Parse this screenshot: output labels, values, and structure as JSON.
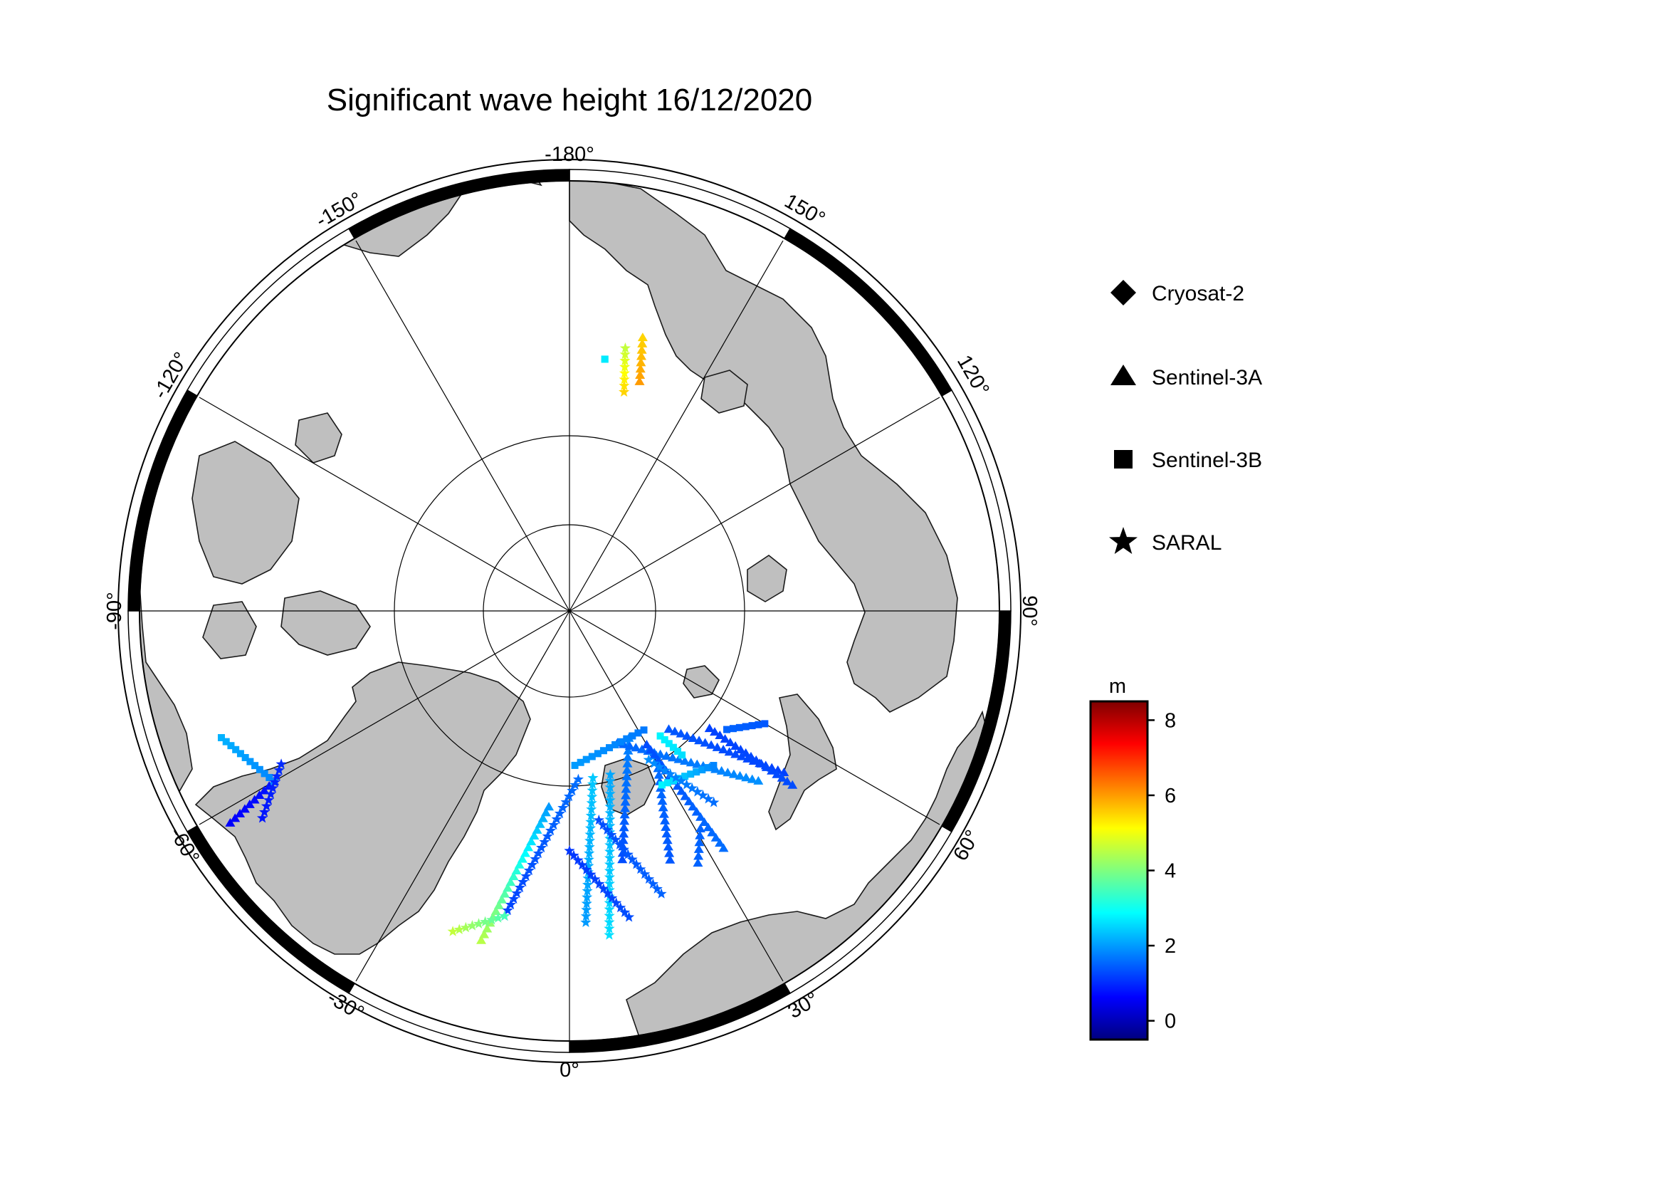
{
  "map": {
    "title": "Significant wave height 16/12/2020",
    "projection": "north-polar-stereographic",
    "lon_labels": [
      "-180°",
      "150°",
      "120°",
      "90°",
      "60°",
      "30°",
      "0°",
      "-30°",
      "-60°",
      "-90°",
      "-120°",
      "-150°"
    ],
    "latitude_circles_deg": [
      80,
      70
    ],
    "meridian_spacing_deg": 30,
    "frame": "alternating black/white 30° border"
  },
  "legend": {
    "items": [
      {
        "label": "Cryosat-2",
        "marker": "diamond"
      },
      {
        "label": "Sentinel-3A",
        "marker": "triangle"
      },
      {
        "label": "Sentinel-3B",
        "marker": "square"
      },
      {
        "label": "SARAL",
        "marker": "star"
      }
    ]
  },
  "colorbar": {
    "unit": "m",
    "ticks": [
      "8",
      "6",
      "4",
      "2",
      "0"
    ],
    "range": [
      -0.5,
      8.5
    ],
    "colormap": "jet",
    "colors": [
      "#00007f",
      "#0000ff",
      "#007fff",
      "#00ffff",
      "#7fff7f",
      "#ffff00",
      "#ff7f00",
      "#ff0000",
      "#7f0000"
    ]
  },
  "tracks": [
    {
      "satellite": "Sentinel-3A",
      "from": [
        12,
        72
      ],
      "to": [
        25,
        80
      ],
      "swh": [
        1.3,
        1.8
      ]
    },
    {
      "satellite": "Sentinel-3A",
      "from": [
        22,
        71
      ],
      "to": [
        31,
        78
      ],
      "swh": [
        1.4,
        1.6
      ]
    },
    {
      "satellite": "Sentinel-3A",
      "from": [
        27,
        70
      ],
      "to": [
        31,
        72
      ],
      "swh": [
        1.5,
        1.5
      ]
    },
    {
      "satellite": "Sentinel-3A",
      "from": [
        40,
        79
      ],
      "to": [
        53,
        71
      ],
      "swh": [
        1.4,
        1.2
      ]
    },
    {
      "satellite": "Sentinel-3A",
      "from": [
        20,
        80
      ],
      "to": [
        48,
        72
      ],
      "swh": [
        1.5,
        1.9
      ]
    },
    {
      "satellite": "Sentinel-3A",
      "from": [
        30,
        79
      ],
      "to": [
        33,
        70
      ],
      "swh": [
        1.3,
        1.6
      ]
    },
    {
      "satellite": "Sentinel-3A",
      "from": [
        50,
        77
      ],
      "to": [
        52,
        70
      ],
      "swh": [
        1.2,
        1.3
      ]
    },
    {
      "satellite": "Sentinel-3A",
      "from": [
        -15,
        66
      ],
      "to": [
        -6,
        76
      ],
      "swh": [
        4.5,
        2.0
      ]
    },
    {
      "satellite": "Sentinel-3A",
      "from": [
        -60,
        66
      ],
      "to": [
        -58,
        62
      ],
      "swh": [
        0.8,
        0.6
      ]
    },
    {
      "satellite": "Sentinel-3A",
      "from": [
        163,
        73
      ],
      "to": [
        165,
        70
      ],
      "swh": [
        6.0,
        5.5
      ]
    },
    {
      "satellite": "Sentinel-3B",
      "from": [
        2,
        79
      ],
      "to": [
        32,
        80
      ],
      "swh": [
        2.0,
        1.7
      ]
    },
    {
      "satellite": "Sentinel-3B",
      "from": [
        28,
        76
      ],
      "to": [
        43,
        75
      ],
      "swh": [
        2.8,
        1.8
      ]
    },
    {
      "satellite": "Sentinel-3B",
      "from": [
        53,
        76
      ],
      "to": [
        60,
        74
      ],
      "swh": [
        1.5,
        1.4
      ]
    },
    {
      "satellite": "Sentinel-3B",
      "from": [
        -70,
        64
      ],
      "to": [
        -60,
        66
      ],
      "swh": [
        2.2,
        1.8
      ]
    },
    {
      "satellite": "Sentinel-3B",
      "from": [
        172,
        72
      ],
      "to": [
        172,
        72
      ],
      "swh": [
        2.7,
        2.7
      ]
    },
    {
      "satellite": "Sentinel-3B",
      "from": [
        36,
        79
      ],
      "to": [
        38,
        77
      ],
      "swh": [
        2.8,
        2.6
      ]
    },
    {
      "satellite": "SARAL",
      "from": [
        3,
        78
      ],
      "to": [
        -12,
        68
      ],
      "swh": [
        1.6,
        1.2
      ]
    },
    {
      "satellite": "SARAL",
      "from": [
        8,
        78
      ],
      "to": [
        3,
        68
      ],
      "swh": [
        2.4,
        2.0
      ]
    },
    {
      "satellite": "SARAL",
      "from": [
        14,
        78
      ],
      "to": [
        7,
        67
      ],
      "swh": [
        2.1,
        2.6
      ]
    },
    {
      "satellite": "SARAL",
      "from": [
        -20,
        66
      ],
      "to": [
        -12,
        68
      ],
      "swh": [
        4.6,
        3.5
      ]
    },
    {
      "satellite": "SARAL",
      "from": [
        0,
        73
      ],
      "to": [
        11,
        68
      ],
      "swh": [
        1.1,
        1.3
      ]
    },
    {
      "satellite": "SARAL",
      "from": [
        8,
        75
      ],
      "to": [
        18,
        69
      ],
      "swh": [
        1.3,
        1.5
      ]
    },
    {
      "satellite": "SARAL",
      "from": [
        28,
        78
      ],
      "to": [
        37,
        73
      ],
      "swh": [
        1.9,
        1.6
      ]
    },
    {
      "satellite": "SARAL",
      "from": [
        -62,
        67
      ],
      "to": [
        -56,
        64
      ],
      "swh": [
        1.0,
        0.8
      ]
    },
    {
      "satellite": "SARAL",
      "from": [
        166,
        74
      ],
      "to": [
        168,
        71
      ],
      "swh": [
        5.5,
        4.6
      ]
    }
  ]
}
